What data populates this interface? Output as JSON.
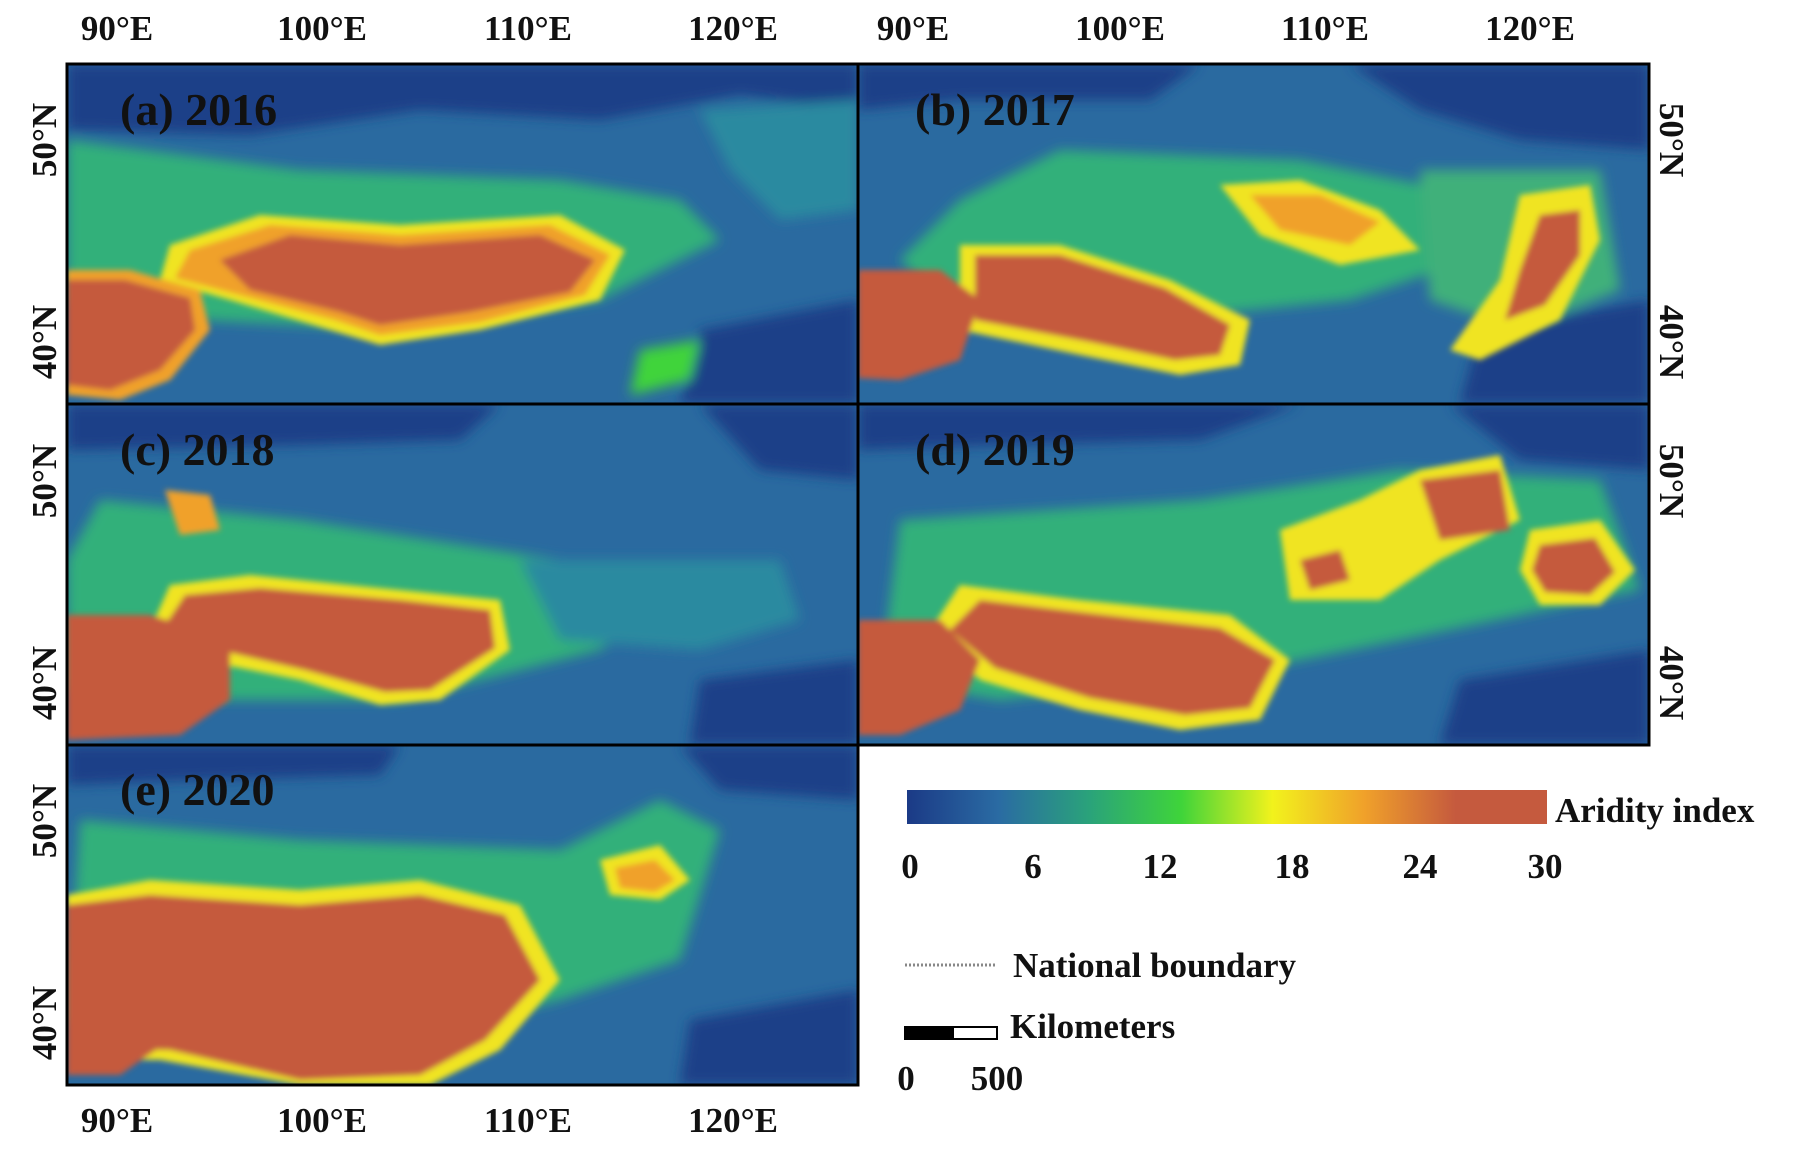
{
  "colorbar": {
    "title": "Aridity index",
    "min": 0,
    "max": 30,
    "ticks": [
      "0",
      "6",
      "12",
      "18",
      "24",
      "30"
    ],
    "colors": [
      "#1b3a86",
      "#2a6ba3",
      "#2aa37a",
      "#3fd43a",
      "#f2f21c",
      "#f0a12a",
      "#c55a3e",
      "#c55a3e"
    ]
  },
  "legend": {
    "boundary_label": "National boundary",
    "scale_unit": "Kilometers",
    "scale_ticks": [
      "0",
      "500"
    ]
  },
  "axis_labels": {
    "lon_top": [
      "90°E",
      "100°E",
      "110°E",
      "120°E",
      "90°E",
      "100°E",
      "110°E",
      "120°E"
    ],
    "lon_bottom": [
      "90°E",
      "100°E",
      "110°E",
      "120°E"
    ],
    "lat_left": [
      "50°N",
      "40°N",
      "50°N",
      "40°N",
      "50°N",
      "40°N"
    ],
    "lat_right": [
      "50°N",
      "40°N",
      "50°N",
      "40°N"
    ]
  },
  "panels": [
    {
      "id": "a",
      "title": "(a) 2016"
    },
    {
      "id": "b",
      "title": "(b) 2017"
    },
    {
      "id": "c",
      "title": "(c) 2018"
    },
    {
      "id": "d",
      "title": "(d) 2019"
    },
    {
      "id": "e",
      "title": "(e) 2020"
    }
  ]
}
